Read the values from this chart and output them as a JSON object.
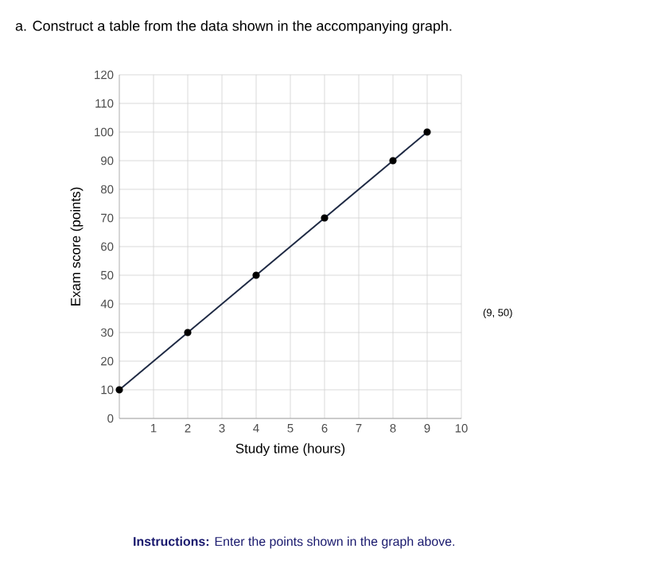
{
  "chart_data": {
    "type": "line",
    "title": "a. Construct a table from the data shown in the accompanying graph.",
    "xlabel": "Study time (hours)",
    "ylabel": "Exam score (points)",
    "x": [
      0,
      2,
      4,
      6,
      8,
      9
    ],
    "series": [
      {
        "color": "#1f2a44",
        "values": [
          10,
          30,
          50,
          70,
          90,
          100
        ]
      }
    ],
    "xlim": [
      0,
      10
    ],
    "ylim": [
      0,
      120
    ],
    "xticks": [
      1,
      2,
      3,
      4,
      5,
      6,
      7,
      8,
      9,
      10
    ],
    "yticks": [
      0,
      10,
      20,
      30,
      40,
      50,
      60,
      70,
      80,
      90,
      100,
      110,
      120
    ],
    "grid": true,
    "marker": "circle",
    "line_style": "solid",
    "annotations": [
      "(9, 50)",
      "**Instructions:** Enter the points shown in the graph above."
    ]
  }
}
